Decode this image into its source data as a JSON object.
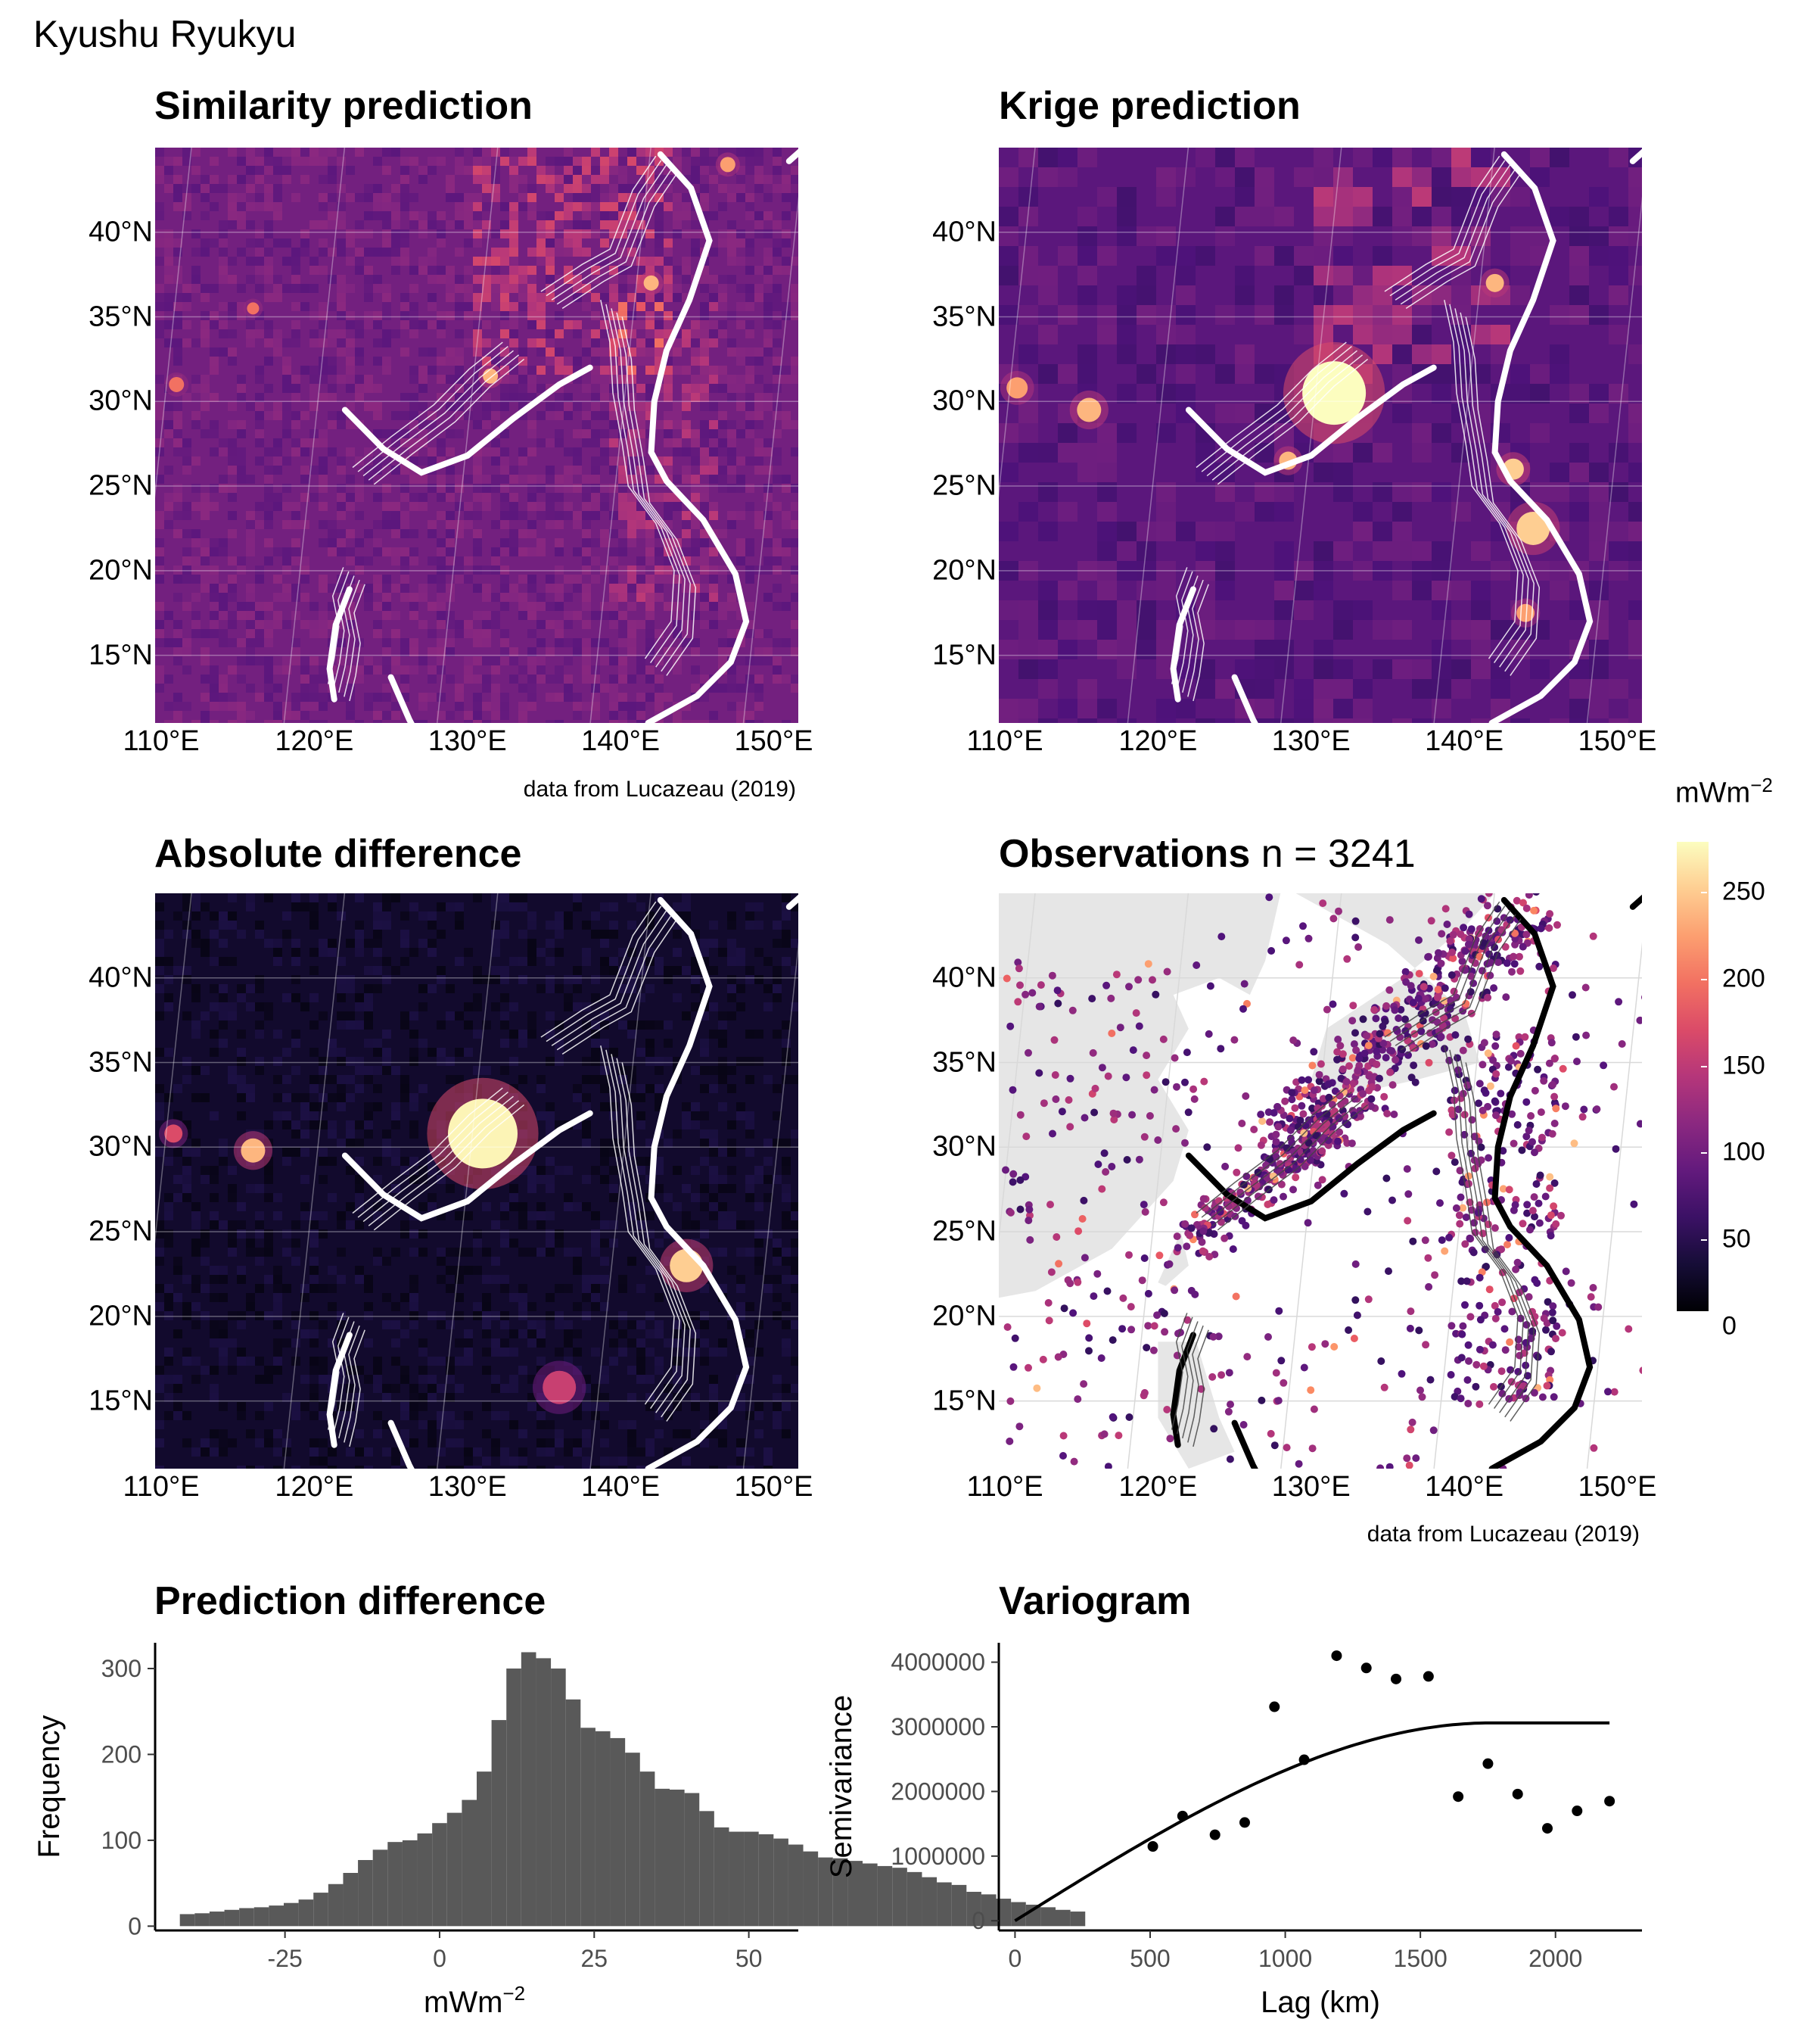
{
  "figure": {
    "title": "Kyushu Ryukyu"
  },
  "panels": {
    "similarity": {
      "title": "Similarity prediction",
      "caption": "data from Lucazeau (2019)"
    },
    "krige": {
      "title": "Krige prediction"
    },
    "absdiff": {
      "title": "Absolute difference"
    },
    "observations": {
      "title": "Observations",
      "n_label": "n = 3241",
      "caption": "data from Lucazeau (2019)"
    },
    "preddiff": {
      "title": "Prediction difference"
    },
    "variogram": {
      "title": "Variogram"
    }
  },
  "map_axes": {
    "lat_labels": [
      "40°N",
      "35°N",
      "30°N",
      "25°N",
      "20°N",
      "15°N"
    ],
    "lon_labels": [
      "110°E",
      "120°E",
      "130°E",
      "140°E",
      "150°E"
    ]
  },
  "legend": {
    "title": "mWm",
    "title_sup": "−2",
    "ticks": [
      "250",
      "200",
      "150",
      "100",
      "50",
      "0"
    ],
    "palette": "magma",
    "range": [
      0,
      250
    ]
  },
  "colors": {
    "map_background": "#3b0f70",
    "land": "#e6e6e6",
    "bars": "#595959",
    "line": "#000000"
  },
  "chart_data": [
    {
      "type": "bar",
      "title": "Prediction difference",
      "xlabel": "mWm",
      "xlabel_sup": "−2",
      "ylabel": "Frequency",
      "xticks": [
        "-25",
        "0",
        "25",
        "50"
      ],
      "yticks": [
        "0",
        "100",
        "200",
        "300"
      ],
      "xlim": [
        -46,
        58
      ],
      "ylim": [
        -5,
        330
      ],
      "bin_width": 2.4,
      "bin_start": -42,
      "values": [
        14,
        15,
        17,
        19,
        21,
        22,
        24,
        27,
        31,
        39,
        49,
        62,
        77,
        89,
        98,
        100,
        108,
        120,
        132,
        147,
        180,
        240,
        300,
        319,
        312,
        300,
        264,
        231,
        227,
        219,
        202,
        180,
        160,
        159,
        155,
        134,
        115,
        110,
        110,
        107,
        102,
        95,
        87,
        80,
        79,
        76,
        73,
        70,
        68,
        63,
        57,
        51,
        48,
        40,
        37,
        32,
        28,
        25,
        22,
        19,
        17
      ]
    },
    {
      "type": "scatter",
      "title": "Variogram",
      "xlabel": "Lag (km)",
      "ylabel": "Semivariance",
      "xticks": [
        "0",
        "500",
        "1000",
        "1500",
        "2000"
      ],
      "yticks": [
        "0",
        "1000000",
        "2000000",
        "3000000",
        "4000000"
      ],
      "xlim": [
        -60,
        2320
      ],
      "ylim": [
        -150000,
        4300000
      ],
      "points": [
        {
          "x": 510,
          "y": 1150000
        },
        {
          "x": 620,
          "y": 1620000
        },
        {
          "x": 740,
          "y": 1330000
        },
        {
          "x": 850,
          "y": 1520000
        },
        {
          "x": 960,
          "y": 3310000
        },
        {
          "x": 1070,
          "y": 2490000
        },
        {
          "x": 1190,
          "y": 4100000
        },
        {
          "x": 1300,
          "y": 3910000
        },
        {
          "x": 1410,
          "y": 3740000
        },
        {
          "x": 1530,
          "y": 3780000
        },
        {
          "x": 1640,
          "y": 1920000
        },
        {
          "x": 1750,
          "y": 2430000
        },
        {
          "x": 1860,
          "y": 1960000
        },
        {
          "x": 1970,
          "y": 1430000
        },
        {
          "x": 2080,
          "y": 1700000
        },
        {
          "x": 2200,
          "y": 1850000
        }
      ],
      "model": {
        "type": "spherical",
        "nugget": 0,
        "sill": 3060000,
        "range": 1760,
        "x_max": 2200
      }
    }
  ]
}
